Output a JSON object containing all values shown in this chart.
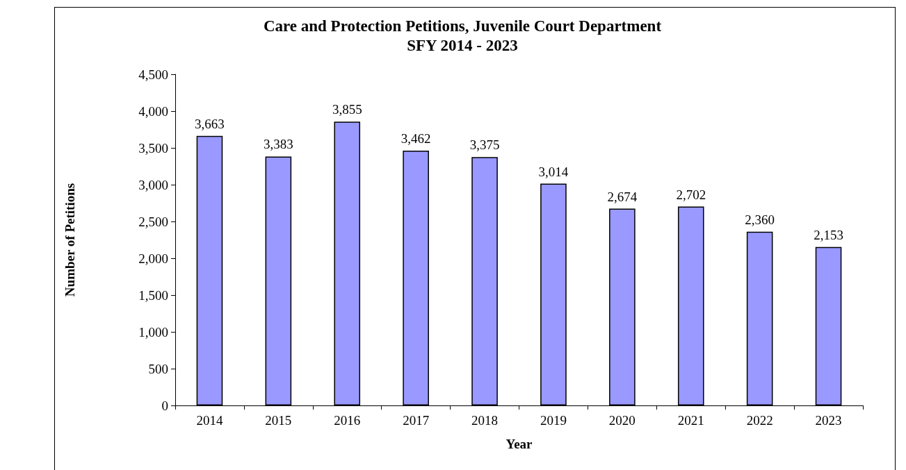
{
  "chart_data": {
    "type": "bar",
    "title": "Care and Protection Petitions, Juvenile Court Department\nSFY 2014 - 2023",
    "xlabel": "Year",
    "ylabel": "Number of Petitions",
    "categories": [
      "2014",
      "2015",
      "2016",
      "2017",
      "2018",
      "2019",
      "2020",
      "2021",
      "2022",
      "2023"
    ],
    "values": [
      3663,
      3383,
      3855,
      3462,
      3375,
      3014,
      2674,
      2702,
      2360,
      2153
    ],
    "value_labels": [
      "3,663",
      "3,383",
      "3,855",
      "3,462",
      "3,375",
      "3,014",
      "2,674",
      "2,702",
      "2,360",
      "2,153"
    ],
    "color": "#9999ff",
    "ylim": [
      0,
      4500
    ],
    "yticks": [
      0,
      500,
      {
        "value": 1000,
        "label": "1,000"
      },
      {
        "value": 1500,
        "label": "1,500"
      },
      {
        "value": 2000,
        "label": "2,000"
      },
      {
        "value": 2500,
        "label": "2,500"
      },
      {
        "value": 3000,
        "label": "3,000"
      },
      {
        "value": 3500,
        "label": "3,500"
      },
      {
        "value": 4000,
        "label": "4,000"
      },
      {
        "value": 4500,
        "label": "4,500"
      }
    ],
    "grid": false
  }
}
